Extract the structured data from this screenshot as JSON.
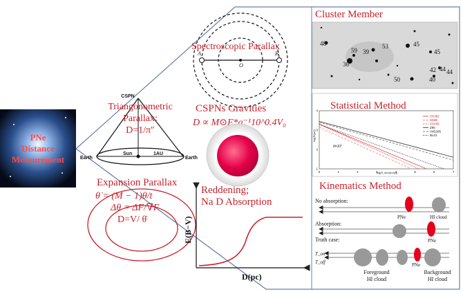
{
  "center": {
    "lines": [
      "PNe",
      "Distance",
      "Measurement"
    ]
  },
  "cluster": {
    "title": "Cluster Member",
    "labels": [
      "48",
      "59",
      "39",
      "53",
      "45",
      "45",
      "36",
      "44",
      "42",
      "40",
      "50",
      "44"
    ]
  },
  "spectro": {
    "title": "Spectroscopic Parallax",
    "points": [
      "A",
      "O",
      "B"
    ]
  },
  "trig": {
    "cspn": "CSPN",
    "title_line1": "Triangonometric",
    "title_line2": "Parallax:",
    "formula": "D=1/π″",
    "earth_left": "Earth",
    "earth_right": "Earth",
    "sun": "Sun",
    "au": "1AU"
  },
  "gravities": {
    "title": "CSPNs Gravities",
    "formula": "D ∝ M⊙F*g⁻¹10^0.4V₀"
  },
  "statistical": {
    "title": "Statistical Method",
    "ylabel": "log(D(pc))",
    "xlabel": "log(S_6cm(mJy))",
    "annotation": "θ=10″",
    "legend": [
      "CK392",
      "SS96",
      "ZSV05",
      "Z95",
      "VdS295",
      "BL01"
    ]
  },
  "expansion": {
    "title": "Expansion Parallax",
    "f1": "θ̇ = (M − 1)θ/t",
    "f2": "Δθ = ΔF/∇F",
    "f3": "D=V/ θ̇"
  },
  "reddening": {
    "title_line1": "Reddening;",
    "title_line2": "Na D   Absorption",
    "ylabel": "E(B−V)",
    "xlabel": "D(pc)"
  },
  "kinematics": {
    "title": "Kinematics Method",
    "row1": "No absorption:",
    "row2": "Absorption:",
    "row3": "Truth case:",
    "pne": "PNe",
    "hi_cloud": "HI cloud",
    "t_on": "T_on",
    "t_off": "T_off",
    "foreground": [
      "Foreground",
      "HI cloud"
    ],
    "background": [
      "Background",
      "HI cloud"
    ]
  },
  "chart_data": {
    "type": "line",
    "title": "Statistical Method",
    "xlabel": "log(S_6cm(mJy))",
    "ylabel": "log(D(pc))",
    "xlim": [
      0,
      7
    ],
    "ylim": [
      1,
      4
    ],
    "series": [
      {
        "name": "CK392",
        "x": [
          0,
          5.6
        ],
        "y": [
          3.3,
          1.0
        ]
      },
      {
        "name": "SS96",
        "x": [
          0,
          4.8
        ],
        "y": [
          3.15,
          1.0
        ]
      },
      {
        "name": "ZSV05",
        "x": [
          0,
          5.2
        ],
        "y": [
          3.3,
          1.0
        ]
      },
      {
        "name": "Z95",
        "x": [
          0,
          7
        ],
        "y": [
          3.45,
          1.6
        ]
      },
      {
        "name": "VdS295",
        "x": [
          0,
          7
        ],
        "y": [
          3.4,
          1.45
        ]
      },
      {
        "name": "BL01",
        "x": [
          0,
          6.5
        ],
        "y": [
          3.3,
          1.0
        ]
      }
    ]
  }
}
